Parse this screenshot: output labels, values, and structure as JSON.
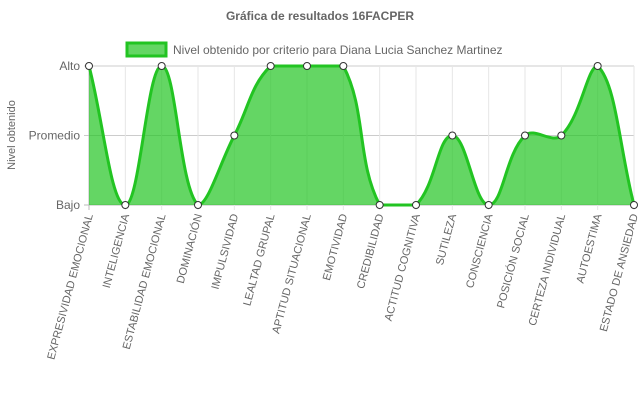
{
  "chart_data": {
    "type": "area",
    "title": "Gráfica de resultados 16FACPER",
    "y_label": "Nivel obtenido",
    "categories": [
      "EXPRESIVIDAD EMOCIONAL",
      "INTELIGENCIA",
      "ESTABILIDAD EMOCIONAL",
      "DOMINACIÓN",
      "IMPULSIVIDAD",
      "LEALTAD GRUPAL",
      "APTITUD SITUACIONAL",
      "EMOTIVIDAD",
      "CREDIBILIDAD",
      "ACTITUD COGNITIVA",
      "SUTILEZA",
      "CONSCIENCIA",
      "POSICIÓN SOCIAL",
      "CERTEZA INDIVIDUAL",
      "AUTOESTIMA",
      "ESTADO DE ANSIEDAD"
    ],
    "series": [
      {
        "name": "Nivel obtenido por criterio para Diana Lucia Sanchez Martinez",
        "color": "#22c422",
        "values": [
          2,
          0,
          2,
          0,
          1,
          2,
          2,
          2,
          0,
          0,
          1,
          0,
          1,
          1,
          2,
          0
        ]
      }
    ],
    "ylim": [
      0,
      2
    ],
    "yticks": [
      {
        "value": 0,
        "label": "Bajo"
      },
      {
        "value": 1,
        "label": "Promedio"
      },
      {
        "value": 2,
        "label": "Alto"
      }
    ],
    "grid": true,
    "legend": "top"
  }
}
